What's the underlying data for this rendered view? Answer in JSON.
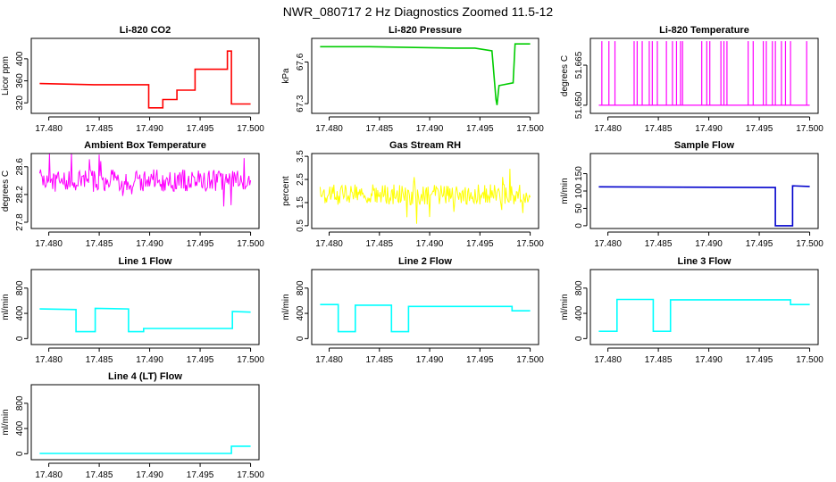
{
  "figure_title": "NWR_080717  2 Hz Diagnostics Zoomed 11.5-12",
  "chart_data": [
    {
      "type": "line",
      "title": "Li-820 CO2",
      "ylabel": "Licor ppm",
      "color": "#ff0000",
      "xlim": [
        17.4791,
        17.5
      ],
      "x_ticks": [
        17.48,
        17.485,
        17.49,
        17.495,
        17.5
      ],
      "x_tick_labels": [
        "17.480",
        "17.485",
        "17.490",
        "17.495",
        "17.500"
      ],
      "ylim": [
        306,
        432
      ],
      "y_ticks": [
        320,
        360,
        400
      ],
      "y_tick_labels": [
        "320",
        "360",
        "400"
      ],
      "x": [
        17.4791,
        17.4845,
        17.4899,
        17.4899,
        17.4913,
        17.4913,
        17.4927,
        17.4927,
        17.4945,
        17.4945,
        17.4977,
        17.4977,
        17.4981,
        17.4981,
        17.5
      ],
      "y": [
        355,
        353,
        353,
        311,
        311,
        326,
        326,
        343,
        343,
        381,
        381,
        414,
        414,
        318,
        318
      ]
    },
    {
      "type": "line",
      "title": "Li-820 Pressure",
      "ylabel": "kPa",
      "color": "#00cc00",
      "xlim": [
        17.4791,
        17.5
      ],
      "x_ticks": [
        17.48,
        17.485,
        17.49,
        17.495,
        17.5
      ],
      "x_tick_labels": [
        "17.480",
        "17.485",
        "17.490",
        "17.495",
        "17.500"
      ],
      "ylim": [
        67.25,
        67.75
      ],
      "y_ticks": [
        67.3,
        67.6
      ],
      "y_tick_labels": [
        "67.3",
        "67.6"
      ],
      "x": [
        17.4791,
        17.484,
        17.4925,
        17.4945,
        17.4962,
        17.4966,
        17.4967,
        17.4969,
        17.4983,
        17.4985,
        17.4988,
        17.5
      ],
      "y": [
        67.71,
        67.71,
        67.7,
        67.7,
        67.68,
        67.33,
        67.29,
        67.43,
        67.45,
        67.73,
        67.73,
        67.73
      ]
    },
    {
      "type": "line",
      "title": "Li-820 Temperature",
      "ylabel": "degrees C",
      "color": "#ff00ff",
      "xlim": [
        17.4791,
        17.5
      ],
      "x_ticks": [
        17.48,
        17.485,
        17.49,
        17.495,
        17.5
      ],
      "x_tick_labels": [
        "17.480",
        "17.485",
        "17.490",
        "17.495",
        "17.500"
      ],
      "ylim": [
        51.648,
        51.674
      ],
      "y_ticks": [
        51.65,
        51.665
      ],
      "y_tick_labels": [
        "51.650",
        "51.665"
      ],
      "baseline": 51.65,
      "spike_value": 51.674,
      "spike_x": [
        17.4794,
        17.4801,
        17.4807,
        17.4826,
        17.4829,
        17.4834,
        17.4841,
        17.4844,
        17.4849,
        17.4858,
        17.4864,
        17.4868,
        17.4872,
        17.4874,
        17.4893,
        17.4898,
        17.4901,
        17.4912,
        17.4915,
        17.4918,
        17.4939,
        17.4944,
        17.4954,
        17.4957,
        17.4963,
        17.4966,
        17.4972,
        17.4976,
        17.4981,
        17.4997
      ]
    },
    {
      "type": "line",
      "title": "Ambient Box Temperature",
      "ylabel": "degrees C",
      "color": "#ff00ff",
      "xlim": [
        17.4791,
        17.5
      ],
      "x_ticks": [
        17.48,
        17.485,
        17.49,
        17.495,
        17.5
      ],
      "x_tick_labels": [
        "17.480",
        "17.485",
        "17.490",
        "17.495",
        "17.500"
      ],
      "ylim": [
        27.75,
        28.75
      ],
      "y_ticks": [
        27.8,
        28.2,
        28.6
      ],
      "y_tick_labels": [
        "27.8",
        "28.2",
        "28.6"
      ],
      "noise_band": [
        28.24,
        28.56
      ],
      "noise_mean": 28.4
    },
    {
      "type": "line",
      "title": "Gas Stream RH",
      "ylabel": "percent",
      "color": "#ffff00",
      "xlim": [
        17.4791,
        17.5
      ],
      "x_ticks": [
        17.48,
        17.485,
        17.49,
        17.495,
        17.5
      ],
      "x_tick_labels": [
        "17.480",
        "17.485",
        "17.490",
        "17.495",
        "17.500"
      ],
      "ylim": [
        0.5,
        3.5
      ],
      "y_ticks": [
        0.5,
        1.5,
        2.5,
        3.5
      ],
      "y_tick_labels": [
        "0.5",
        "1.5",
        "2.5",
        "3.5"
      ],
      "noise_band": [
        1.4,
        2.3
      ],
      "noise_mean": 1.85
    },
    {
      "type": "line",
      "title": "Sample Flow",
      "ylabel": "ml/min",
      "color": "#0000cc",
      "xlim": [
        17.4791,
        17.5
      ],
      "x_ticks": [
        17.48,
        17.485,
        17.49,
        17.495,
        17.5
      ],
      "x_tick_labels": [
        "17.480",
        "17.485",
        "17.490",
        "17.495",
        "17.500"
      ],
      "ylim": [
        0,
        200
      ],
      "y_ticks": [
        0,
        50,
        100,
        150
      ],
      "y_tick_labels": [
        "0",
        "50",
        "100",
        "150"
      ],
      "x": [
        17.4791,
        17.4966,
        17.4966,
        17.4983,
        17.4983,
        17.5
      ],
      "y": [
        112,
        110,
        0,
        0,
        115,
        113
      ]
    },
    {
      "type": "line",
      "title": "Line 1 Flow",
      "ylabel": "ml/min",
      "color": "#00ffff",
      "xlim": [
        17.4791,
        17.5
      ],
      "x_ticks": [
        17.48,
        17.485,
        17.49,
        17.495,
        17.5
      ],
      "x_tick_labels": [
        "17.480",
        "17.485",
        "17.490",
        "17.495",
        "17.500"
      ],
      "ylim": [
        -50,
        1050
      ],
      "y_ticks": [
        0,
        400,
        800
      ],
      "y_tick_labels": [
        "0",
        "400",
        "800"
      ],
      "x": [
        17.4791,
        17.4827,
        17.4827,
        17.4846,
        17.4846,
        17.4879,
        17.4879,
        17.4894,
        17.4894,
        17.4982,
        17.4982,
        17.5
      ],
      "y": [
        470,
        460,
        110,
        110,
        480,
        470,
        110,
        110,
        160,
        160,
        430,
        420
      ]
    },
    {
      "type": "line",
      "title": "Line 2 Flow",
      "ylabel": "ml/min",
      "color": "#00ffff",
      "xlim": [
        17.4791,
        17.5
      ],
      "x_ticks": [
        17.48,
        17.485,
        17.49,
        17.495,
        17.5
      ],
      "x_tick_labels": [
        "17.480",
        "17.485",
        "17.490",
        "17.495",
        "17.500"
      ],
      "ylim": [
        -50,
        1050
      ],
      "y_ticks": [
        0,
        400,
        800
      ],
      "y_tick_labels": [
        "0",
        "400",
        "800"
      ],
      "x": [
        17.4791,
        17.4809,
        17.4809,
        17.4826,
        17.4826,
        17.4862,
        17.4862,
        17.4879,
        17.4879,
        17.4982,
        17.4982,
        17.5
      ],
      "y": [
        540,
        540,
        110,
        110,
        530,
        530,
        110,
        110,
        510,
        510,
        440,
        440
      ]
    },
    {
      "type": "line",
      "title": "Line 3 Flow",
      "ylabel": "ml/min",
      "color": "#00ffff",
      "xlim": [
        17.4791,
        17.5
      ],
      "x_ticks": [
        17.48,
        17.485,
        17.49,
        17.495,
        17.5
      ],
      "x_tick_labels": [
        "17.480",
        "17.485",
        "17.490",
        "17.495",
        "17.500"
      ],
      "ylim": [
        -50,
        1050
      ],
      "y_ticks": [
        0,
        400,
        800
      ],
      "y_tick_labels": [
        "0",
        "400",
        "800"
      ],
      "x": [
        17.4791,
        17.4809,
        17.4809,
        17.4845,
        17.4845,
        17.4862,
        17.4862,
        17.4981,
        17.4981,
        17.5
      ],
      "y": [
        115,
        115,
        620,
        620,
        115,
        115,
        615,
        615,
        540,
        540
      ]
    },
    {
      "type": "line",
      "title": "Line 4 (LT) Flow",
      "ylabel": "ml/min",
      "color": "#00ffff",
      "xlim": [
        17.4791,
        17.5
      ],
      "x_ticks": [
        17.48,
        17.485,
        17.49,
        17.495,
        17.5
      ],
      "x_tick_labels": [
        "17.480",
        "17.485",
        "17.490",
        "17.495",
        "17.500"
      ],
      "ylim": [
        -50,
        1050
      ],
      "y_ticks": [
        0,
        400,
        800
      ],
      "y_tick_labels": [
        "0",
        "400",
        "800"
      ],
      "x": [
        17.4791,
        17.4981,
        17.4981,
        17.5
      ],
      "y": [
        5,
        5,
        120,
        120
      ]
    }
  ]
}
